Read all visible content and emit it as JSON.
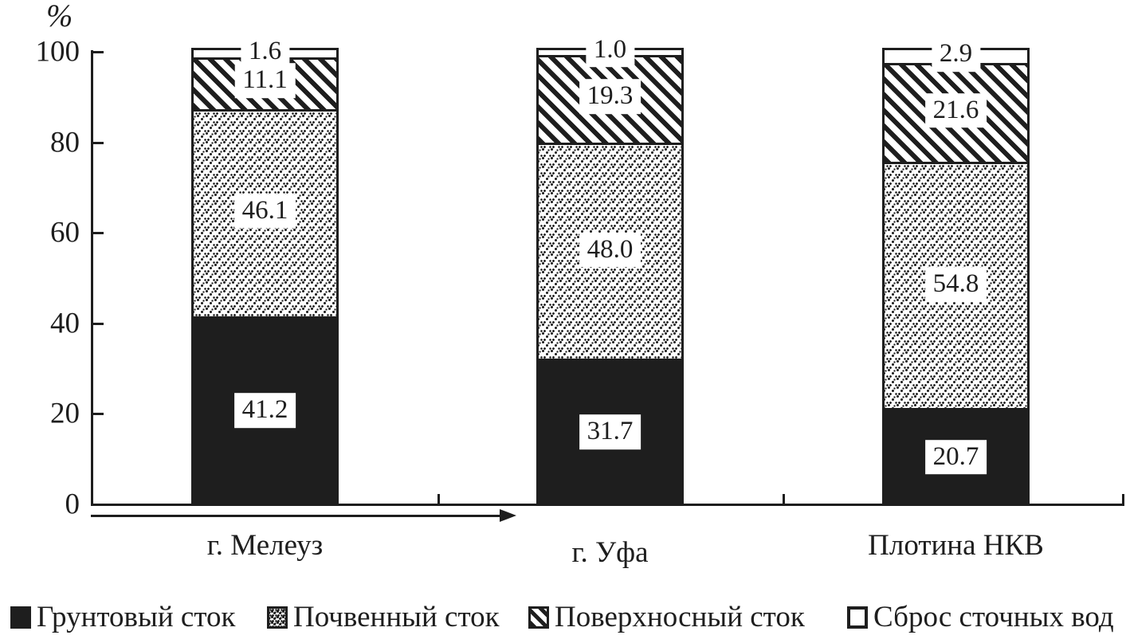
{
  "chart_data": {
    "type": "bar",
    "stacked": true,
    "title": "",
    "ylabel": "%",
    "xlabel": "",
    "ylim": [
      0,
      100
    ],
    "grid": false,
    "legend_position": "bottom",
    "ink_color": "#1e1e1e",
    "background_color": "#ffffff",
    "yticks": [
      "100",
      "80",
      "60",
      "40",
      "20",
      "0"
    ],
    "categories": [
      "г. Мелеуз",
      "г. Уфа",
      "Плотина НКВ"
    ],
    "series": [
      {
        "name": "Грунтовый сток",
        "pattern": "solid-black",
        "values": [
          41.2,
          31.7,
          20.7
        ],
        "labels": [
          "41.2",
          "31.7",
          "20.7"
        ]
      },
      {
        "name": "Почвенный сток",
        "pattern": "speckle",
        "values": [
          46.1,
          48.0,
          54.8
        ],
        "labels": [
          "46.1",
          "48.0",
          "54.8"
        ]
      },
      {
        "name": "Поверхносный сток",
        "pattern": "diagonal-hatch",
        "values": [
          11.1,
          19.3,
          21.6
        ],
        "labels": [
          "11.1",
          "19.3",
          "21.6"
        ]
      },
      {
        "name": "Сброс сточных вод",
        "pattern": "white-outline",
        "values": [
          1.6,
          1.0,
          2.9
        ],
        "labels": [
          "1.6",
          "1.0",
          "2.9"
        ]
      }
    ]
  }
}
